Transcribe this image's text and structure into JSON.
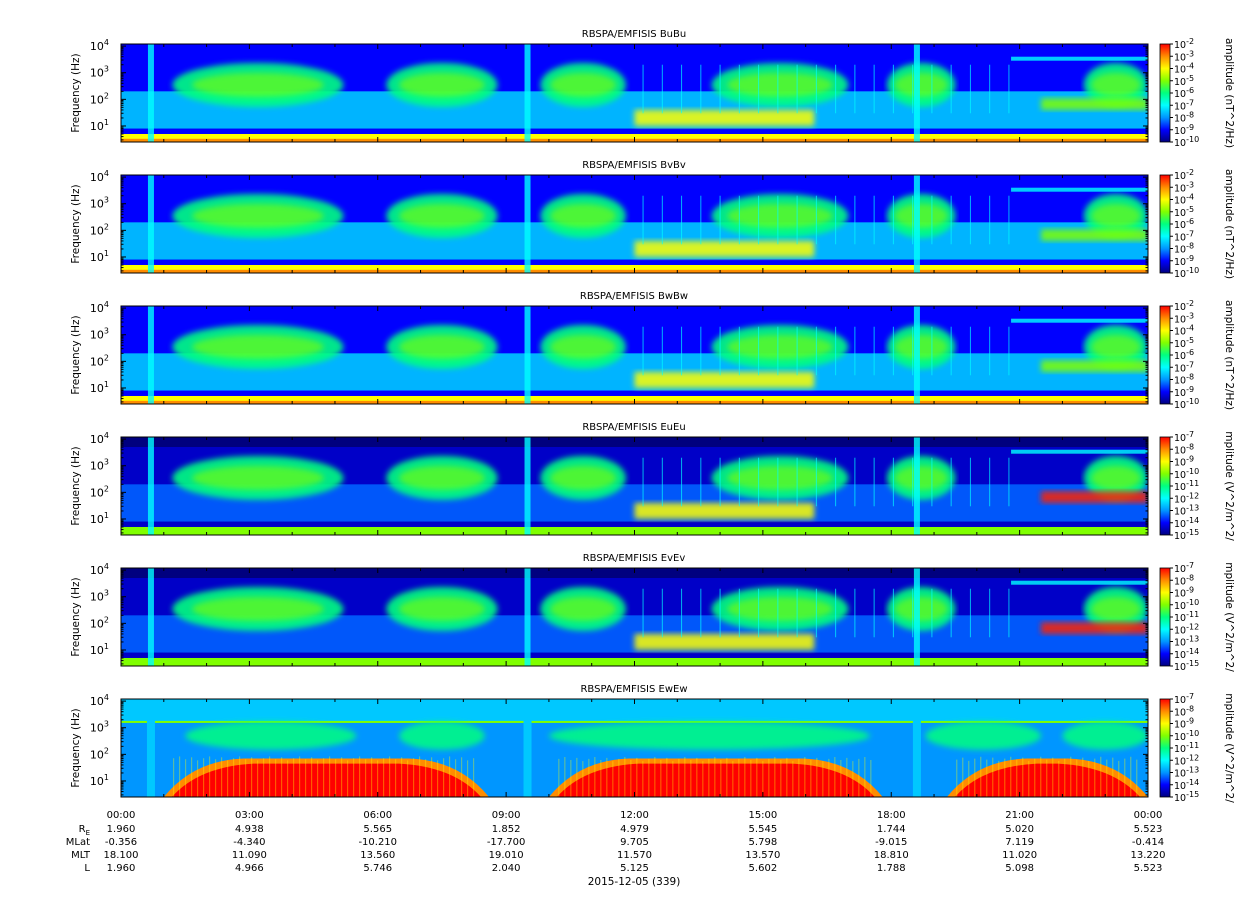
{
  "chart_data": {
    "type": "heatmap",
    "date_label": "2015-12-05 (339)",
    "x_ticks": [
      "00:00",
      "03:00",
      "06:00",
      "09:00",
      "12:00",
      "15:00",
      "18:00",
      "21:00",
      "00:00"
    ],
    "ephemeris": {
      "labels": [
        "R",
        "MLat",
        "MLT",
        "L"
      ],
      "label_subscript": "E",
      "rows": [
        [
          "1.960",
          "4.938",
          "5.565",
          "1.852",
          "4.979",
          "5.545",
          "1.744",
          "5.020",
          "5.523"
        ],
        [
          "-0.356",
          "-4.340",
          "-10.210",
          "-17.700",
          "9.705",
          "5.798",
          "-9.015",
          "7.119",
          "-0.414"
        ],
        [
          "18.100",
          "11.090",
          "13.560",
          "19.010",
          "11.570",
          "13.570",
          "18.810",
          "11.020",
          "13.220"
        ],
        [
          "1.960",
          "4.966",
          "5.746",
          "2.040",
          "5.125",
          "5.602",
          "1.788",
          "5.098",
          "5.523"
        ]
      ]
    },
    "y_scale": "log",
    "y_range": [
      2.5,
      12000
    ],
    "ylabel": "Frequency (Hz)",
    "y_ticks": [
      "10",
      "10",
      "10",
      "10"
    ],
    "y_tick_exponents": [
      "1",
      "2",
      "3",
      "4"
    ],
    "panels": [
      {
        "title": "RBSPA/EMFISIS  BuBu",
        "kind": "B",
        "colorbar_label": "amplitude (nT^2/Hz)",
        "colorbar_exponents": [
          "-2",
          "-3",
          "-4",
          "-5",
          "-6",
          "-7",
          "-8",
          "-9",
          "-10"
        ]
      },
      {
        "title": "RBSPA/EMFISIS  BvBv",
        "kind": "B",
        "colorbar_label": "amplitude (nT^2/Hz)",
        "colorbar_exponents": [
          "-2",
          "-3",
          "-4",
          "-5",
          "-6",
          "-7",
          "-8",
          "-9",
          "-10"
        ]
      },
      {
        "title": "RBSPA/EMFISIS  BwBw",
        "kind": "B",
        "colorbar_label": "amplitude (nT^2/Hz)",
        "colorbar_exponents": [
          "-2",
          "-3",
          "-4",
          "-5",
          "-6",
          "-7",
          "-8",
          "-9",
          "-10"
        ]
      },
      {
        "title": "RBSPA/EMFISIS  EuEu",
        "kind": "E",
        "colorbar_label": "mplitude (V^2/m^2/",
        "colorbar_exponents": [
          "-7",
          "-8",
          "-9",
          "-10",
          "-11",
          "-12",
          "-13",
          "-14",
          "-15"
        ]
      },
      {
        "title": "RBSPA/EMFISIS  EvEv",
        "kind": "E",
        "colorbar_label": "mplitude (V^2/m^2/",
        "colorbar_exponents": [
          "-7",
          "-8",
          "-9",
          "-10",
          "-11",
          "-12",
          "-13",
          "-14",
          "-15"
        ]
      },
      {
        "title": "RBSPA/EMFISIS  EwEw",
        "kind": "Ew",
        "colorbar_label": "mplitude (V^2/m^2/",
        "colorbar_exponents": [
          "-7",
          "-8",
          "-9",
          "-10",
          "-11",
          "-12",
          "-13",
          "-14",
          "-15"
        ]
      }
    ],
    "colormap": [
      "#00007f",
      "#0000ff",
      "#0096ff",
      "#00ffff",
      "#00ff80",
      "#80ff00",
      "#ffff00",
      "#ff8c00",
      "#ff0000"
    ]
  }
}
